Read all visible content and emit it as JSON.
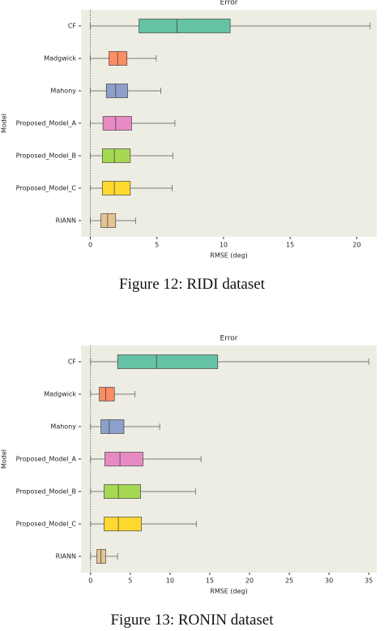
{
  "chart_data": [
    {
      "type": "box",
      "title": "Error",
      "x_label": "RMSE (deg)",
      "y_label": "Model",
      "caption": "Figure 12: RIDI dataset",
      "categories": [
        "CF",
        "Madgwick",
        "Mahony",
        "Proposed_Model_A",
        "Proposed_Model_B",
        "Proposed_Model_C",
        "RIANN"
      ],
      "colors": [
        "#66c2a5",
        "#fc8d62",
        "#8da0cb",
        "#e78ac3",
        "#a6d854",
        "#ffd92f",
        "#e5c494"
      ],
      "boxes": [
        {
          "min": 0,
          "q1": 3.65,
          "median": 6.5,
          "q3": 10.5,
          "max": 21.0
        },
        {
          "min": 0,
          "q1": 1.4,
          "median": 2.05,
          "q3": 2.75,
          "max": 4.95
        },
        {
          "min": 0,
          "q1": 1.2,
          "median": 1.9,
          "q3": 2.8,
          "max": 5.3
        },
        {
          "min": 0,
          "q1": 0.95,
          "median": 1.9,
          "q3": 3.1,
          "max": 6.35
        },
        {
          "min": 0,
          "q1": 0.9,
          "median": 1.8,
          "q3": 3.0,
          "max": 6.2
        },
        {
          "min": 0,
          "q1": 0.9,
          "median": 1.8,
          "q3": 3.0,
          "max": 6.15
        },
        {
          "min": 0,
          "q1": 0.8,
          "median": 1.3,
          "q3": 1.9,
          "max": 3.4
        }
      ],
      "xlim": [
        -0.7,
        21.5
      ],
      "xticks": [
        0,
        5,
        10,
        15,
        20
      ]
    },
    {
      "type": "box",
      "title": "Error",
      "x_label": "RMSE (deg)",
      "y_label": "Model",
      "caption": "Figure 13: RONIN dataset",
      "categories": [
        "CF",
        "Madgwick",
        "Mahony",
        "Proposed_Model_A",
        "Proposed_Model_B",
        "Proposed_Model_C",
        "RIANN"
      ],
      "colors": [
        "#66c2a5",
        "#fc8d62",
        "#8da0cb",
        "#e78ac3",
        "#a6d854",
        "#ffd92f",
        "#e5c494"
      ],
      "boxes": [
        {
          "min": 0,
          "q1": 3.4,
          "median": 8.3,
          "q3": 16.0,
          "max": 35.0
        },
        {
          "min": 0,
          "q1": 1.1,
          "median": 1.9,
          "q3": 3.0,
          "max": 5.6
        },
        {
          "min": 0,
          "q1": 1.3,
          "median": 2.35,
          "q3": 4.2,
          "max": 8.7
        },
        {
          "min": 0,
          "q1": 1.8,
          "median": 3.7,
          "q3": 6.6,
          "max": 13.9
        },
        {
          "min": 0,
          "q1": 1.7,
          "median": 3.5,
          "q3": 6.3,
          "max": 13.2
        },
        {
          "min": 0,
          "q1": 1.7,
          "median": 3.5,
          "q3": 6.4,
          "max": 13.3
        },
        {
          "min": 0,
          "q1": 0.8,
          "median": 1.3,
          "q3": 1.9,
          "max": 3.4
        }
      ],
      "xlim": [
        -1.2,
        36
      ],
      "xticks": [
        0,
        5,
        10,
        15,
        20,
        25,
        30,
        35
      ]
    }
  ]
}
